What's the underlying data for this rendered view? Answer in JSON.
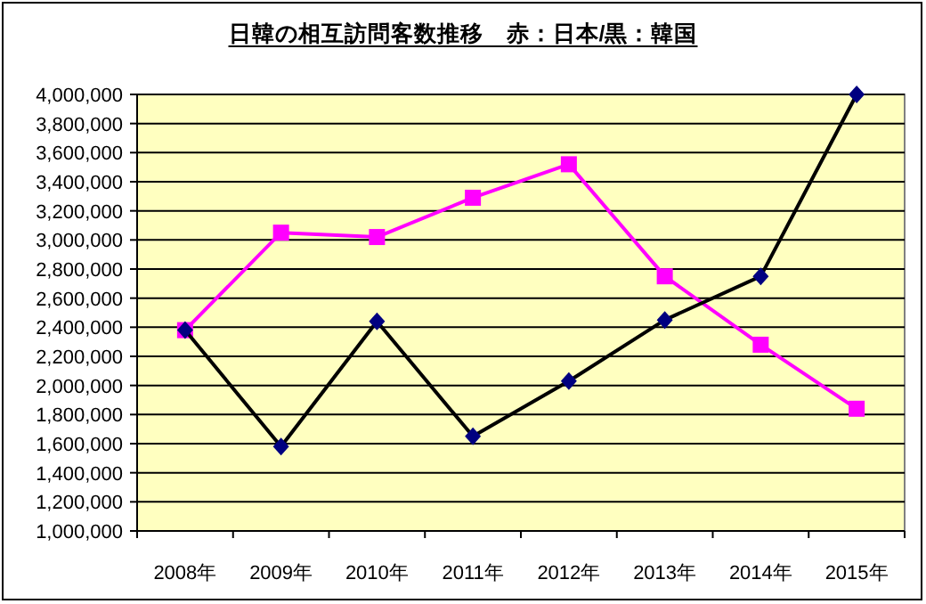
{
  "chart_data": {
    "type": "line",
    "title": "日韓の相互訪問客数推移　赤：日本/黒：韓国",
    "categories": [
      "2008年",
      "2009年",
      "2010年",
      "2011年",
      "2012年",
      "2013年",
      "2014年",
      "2015年"
    ],
    "series": [
      {
        "color": "#ff00ff",
        "marker": "square",
        "values": [
          2380000,
          3050000,
          3020000,
          3290000,
          3520000,
          2750000,
          2280000,
          1840000
        ]
      },
      {
        "color": "#000080",
        "marker": "diamond",
        "values": [
          2380000,
          1580000,
          2440000,
          1650000,
          2030000,
          2450000,
          2750000,
          4000000
        ]
      }
    ],
    "ylim": [
      1000000,
      4000000
    ],
    "yticks": [
      {
        "value": 1000000,
        "label": "1,000,000"
      },
      {
        "value": 1200000,
        "label": "1,200,000"
      },
      {
        "value": 1400000,
        "label": "1,400,000"
      },
      {
        "value": 1600000,
        "label": "1,600,000"
      },
      {
        "value": 1800000,
        "label": "1,800,000"
      },
      {
        "value": 2000000,
        "label": "2,000,000"
      },
      {
        "value": 2200000,
        "label": "2,200,000"
      },
      {
        "value": 2400000,
        "label": "2,400,000"
      },
      {
        "value": 2600000,
        "label": "2,600,000"
      },
      {
        "value": 2800000,
        "label": "2,800,000"
      },
      {
        "value": 3000000,
        "label": "3,000,000"
      },
      {
        "value": 3200000,
        "label": "3,200,000"
      },
      {
        "value": 3400000,
        "label": "3,400,000"
      },
      {
        "value": 3600000,
        "label": "3,600,000"
      },
      {
        "value": 3800000,
        "label": "3,800,000"
      },
      {
        "value": 4000000,
        "label": "4,000,000"
      }
    ],
    "grid": "y"
  }
}
